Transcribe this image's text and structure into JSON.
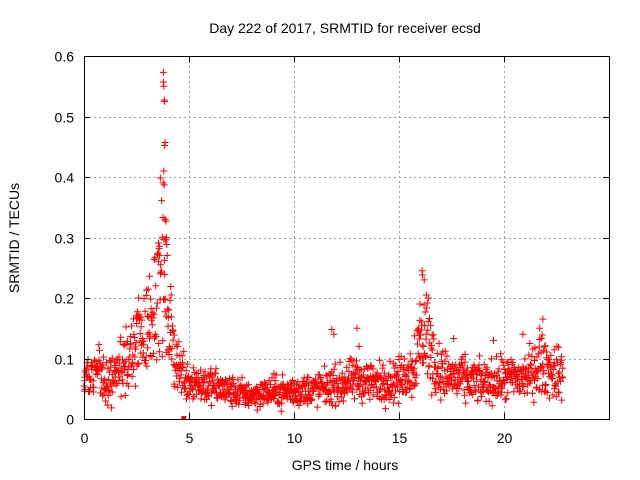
{
  "chart_data": {
    "type": "scatter",
    "title": "Day 222 of 2017, SRMTID for receiver ecsd",
    "xlabel": "GPS time / hours",
    "ylabel": "SRMTID / TECUs",
    "xlim": [
      0,
      25
    ],
    "ylim": [
      0,
      0.6
    ],
    "xticks": [
      0,
      5,
      10,
      15,
      20
    ],
    "xtick_labels": [
      "0",
      "5",
      "10",
      "15",
      "20"
    ],
    "yticks": [
      0,
      0.1,
      0.2,
      0.3,
      0.4,
      0.5,
      0.6
    ],
    "ytick_labels": [
      "0",
      "0.1",
      "0.2",
      "0.3",
      "0.4",
      "0.5",
      "0.6"
    ],
    "grid": true,
    "marker": "+",
    "series": [
      {
        "name": "SRMTID",
        "color": "#ff0000",
        "x_range": [
          0,
          22.8
        ],
        "profile": [
          [
            0.0,
            0.065
          ],
          [
            0.5,
            0.085
          ],
          [
            0.8,
            0.075
          ],
          [
            1.0,
            0.06
          ],
          [
            1.5,
            0.07
          ],
          [
            2.0,
            0.09
          ],
          [
            2.5,
            0.12
          ],
          [
            3.0,
            0.15
          ],
          [
            3.4,
            0.2
          ],
          [
            3.7,
            0.26
          ],
          [
            3.9,
            0.2
          ],
          [
            4.2,
            0.12
          ],
          [
            4.6,
            0.08
          ],
          [
            5.0,
            0.065
          ],
          [
            6.0,
            0.055
          ],
          [
            7.0,
            0.045
          ],
          [
            8.0,
            0.04
          ],
          [
            9.0,
            0.045
          ],
          [
            10.0,
            0.045
          ],
          [
            11.0,
            0.05
          ],
          [
            12.0,
            0.055
          ],
          [
            13.0,
            0.065
          ],
          [
            14.0,
            0.06
          ],
          [
            15.0,
            0.065
          ],
          [
            15.6,
            0.08
          ],
          [
            16.0,
            0.13
          ],
          [
            16.3,
            0.14
          ],
          [
            16.7,
            0.09
          ],
          [
            17.0,
            0.075
          ],
          [
            18.0,
            0.065
          ],
          [
            19.0,
            0.06
          ],
          [
            20.0,
            0.065
          ],
          [
            21.0,
            0.07
          ],
          [
            21.8,
            0.09
          ],
          [
            22.5,
            0.075
          ],
          [
            22.8,
            0.075
          ]
        ],
        "peaks": [
          {
            "x": 3.78,
            "y": 0.573
          },
          {
            "x": 3.78,
            "y": 0.557
          },
          {
            "x": 3.8,
            "y": 0.55
          },
          {
            "x": 3.82,
            "y": 0.527
          },
          {
            "x": 3.84,
            "y": 0.525
          },
          {
            "x": 3.86,
            "y": 0.457
          },
          {
            "x": 3.84,
            "y": 0.452
          },
          {
            "x": 3.8,
            "y": 0.41
          },
          {
            "x": 3.82,
            "y": 0.387
          },
          {
            "x": 3.76,
            "y": 0.333
          },
          {
            "x": 3.86,
            "y": 0.33
          },
          {
            "x": 3.9,
            "y": 0.327
          },
          {
            "x": 3.88,
            "y": 0.296
          },
          {
            "x": 3.92,
            "y": 0.3
          },
          {
            "x": 3.6,
            "y": 0.27
          },
          {
            "x": 3.55,
            "y": 0.26
          },
          {
            "x": 3.65,
            "y": 0.255
          },
          {
            "x": 16.1,
            "y": 0.245
          },
          {
            "x": 16.12,
            "y": 0.238
          },
          {
            "x": 16.2,
            "y": 0.23
          },
          {
            "x": 16.3,
            "y": 0.205
          },
          {
            "x": 16.4,
            "y": 0.2
          },
          {
            "x": 16.0,
            "y": 0.19
          },
          {
            "x": 4.15,
            "y": 0.205
          },
          {
            "x": 2.6,
            "y": 0.2
          },
          {
            "x": 11.8,
            "y": 0.148
          },
          {
            "x": 11.9,
            "y": 0.14
          },
          {
            "x": 13.0,
            "y": 0.15
          },
          {
            "x": 13.1,
            "y": 0.12
          },
          {
            "x": 21.85,
            "y": 0.165
          },
          {
            "x": 21.7,
            "y": 0.15
          },
          {
            "x": 20.9,
            "y": 0.14
          },
          {
            "x": 19.5,
            "y": 0.13
          },
          {
            "x": 17.6,
            "y": 0.133
          }
        ]
      }
    ],
    "outliers": [
      {
        "x": 4.75,
        "y": 0.0,
        "color": "#ff0000"
      }
    ]
  }
}
